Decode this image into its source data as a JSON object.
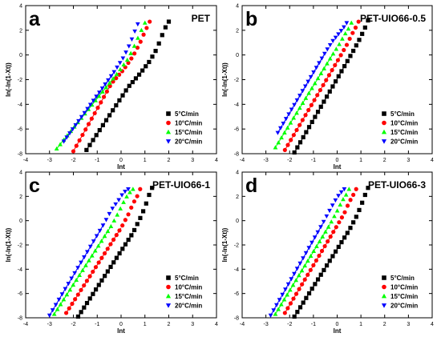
{
  "chart_data": [
    {
      "type": "scatter",
      "panel_letter": "a",
      "title": "PET",
      "xlabel": "lnt",
      "ylabel": "ln(-ln(1-Xt))",
      "xlim": [
        -4,
        4
      ],
      "ylim": [
        -8,
        4
      ],
      "xticks": [
        -4,
        -3,
        -2,
        -1,
        0,
        1,
        2,
        3,
        4
      ],
      "yticks": [
        -8,
        -6,
        -4,
        -2,
        0,
        2,
        4
      ],
      "grid": false,
      "legend_position": "bottom-right",
      "series": [
        {
          "name": "5°C/min",
          "marker": "square",
          "color": "#000000",
          "x_range": [
            -1.45,
            2.0
          ],
          "fit": [
            -1.45,
            -7.7,
            0.3,
            -2.6
          ],
          "tail": [
            [
              0.3,
              -2.6
            ],
            [
              0.8,
              -1.5
            ],
            [
              1.2,
              -0.5
            ],
            [
              1.5,
              0.5
            ],
            [
              1.7,
              1.5
            ],
            [
              1.85,
              2.2
            ],
            [
              2.0,
              2.7
            ]
          ]
        },
        {
          "name": "10°C/min",
          "marker": "circle",
          "color": "#ff0000",
          "x_range": [
            -2.0,
            1.2
          ],
          "fit": [
            -2.0,
            -7.8,
            -0.4,
            -2.3
          ],
          "tail": [
            [
              -0.4,
              -2.3
            ],
            [
              0.1,
              -1.2
            ],
            [
              0.5,
              -0.1
            ],
            [
              0.8,
              1.0
            ],
            [
              1.0,
              1.9
            ],
            [
              1.2,
              2.7
            ]
          ]
        },
        {
          "name": "15°C/min",
          "marker": "triangle-up",
          "color": "#00ff00",
          "x_range": [
            -2.7,
            1.0
          ],
          "fit": [
            -2.7,
            -7.6,
            -0.2,
            -1.6
          ],
          "tail": [
            [
              -0.2,
              -1.6
            ],
            [
              0.3,
              -0.3
            ],
            [
              0.6,
              0.9
            ],
            [
              0.8,
              1.8
            ],
            [
              1.0,
              2.6
            ]
          ]
        },
        {
          "name": "20°C/min",
          "marker": "triangle-down",
          "color": "#0000ff",
          "x_range": [
            -2.4,
            0.7
          ],
          "fit": [
            -2.4,
            -7.0,
            -0.3,
            -1.4
          ],
          "tail": [
            [
              -0.3,
              -1.4
            ],
            [
              0.1,
              -0.2
            ],
            [
              0.4,
              1.0
            ],
            [
              0.55,
              1.8
            ],
            [
              0.7,
              2.5
            ]
          ]
        }
      ]
    },
    {
      "type": "scatter",
      "panel_letter": "b",
      "title": "PET-UIO66-0.5",
      "xlabel": "lnt",
      "ylabel": "ln(-ln(1-Xt))",
      "xlim": [
        -4,
        4
      ],
      "ylim": [
        -8,
        4
      ],
      "xticks": [
        -4,
        -3,
        -2,
        -1,
        0,
        1,
        2,
        3,
        4
      ],
      "yticks": [
        -8,
        -6,
        -4,
        -2,
        0,
        2,
        4
      ],
      "grid": false,
      "legend_position": "bottom-right",
      "series": [
        {
          "name": "5°C/min",
          "marker": "square",
          "color": "#000000",
          "x_range": [
            -1.8,
            1.3
          ],
          "fit": [
            -1.8,
            -7.9,
            0.4,
            -0.6
          ],
          "tail": [
            [
              0.4,
              -0.6
            ],
            [
              0.7,
              0.4
            ],
            [
              0.95,
              1.3
            ],
            [
              1.15,
              2.1
            ],
            [
              1.3,
              2.8
            ]
          ]
        },
        {
          "name": "10°C/min",
          "marker": "circle",
          "color": "#ff0000",
          "x_range": [
            -2.2,
            0.9
          ],
          "fit": [
            -2.2,
            -7.7,
            0.1,
            -0.2
          ],
          "tail": [
            [
              0.1,
              -0.2
            ],
            [
              0.4,
              0.8
            ],
            [
              0.6,
              1.6
            ],
            [
              0.8,
              2.3
            ],
            [
              0.9,
              2.7
            ]
          ]
        },
        {
          "name": "15°C/min",
          "marker": "triangle-up",
          "color": "#00ff00",
          "x_range": [
            -2.6,
            0.6
          ],
          "fit": [
            -2.6,
            -7.5,
            -0.2,
            0.0
          ],
          "tail": [
            [
              -0.2,
              0.0
            ],
            [
              0.1,
              0.9
            ],
            [
              0.3,
              1.6
            ],
            [
              0.5,
              2.2
            ],
            [
              0.6,
              2.6
            ]
          ]
        },
        {
          "name": "20°C/min",
          "marker": "triangle-down",
          "color": "#0000ff",
          "x_range": [
            -2.5,
            0.4
          ],
          "fit": [
            -2.5,
            -6.3,
            -0.5,
            0.2
          ],
          "tail": [
            [
              -0.5,
              0.2
            ],
            [
              -0.2,
              1.1
            ],
            [
              0.1,
              1.8
            ],
            [
              0.3,
              2.3
            ],
            [
              0.4,
              2.6
            ]
          ]
        }
      ]
    },
    {
      "type": "scatter",
      "panel_letter": "c",
      "title": "PET-UIO66-1",
      "xlabel": "lnt",
      "ylabel": "ln(-ln(1-Xt))",
      "xlim": [
        -4,
        4
      ],
      "ylim": [
        -8,
        4
      ],
      "xticks": [
        -4,
        -3,
        -2,
        -1,
        0,
        1,
        2,
        3,
        4
      ],
      "yticks": [
        -8,
        -6,
        -4,
        -2,
        0,
        2,
        4
      ],
      "grid": false,
      "legend_position": "bottom-right",
      "series": [
        {
          "name": "5°C/min",
          "marker": "square",
          "color": "#000000",
          "x_range": [
            -1.8,
            1.3
          ],
          "fit": [
            -1.8,
            -7.9,
            0.5,
            -1.0
          ],
          "tail": [
            [
              0.5,
              -1.0
            ],
            [
              0.8,
              0.2
            ],
            [
              1.0,
              1.1
            ],
            [
              1.15,
              2.0
            ],
            [
              1.3,
              2.7
            ]
          ]
        },
        {
          "name": "10°C/min",
          "marker": "circle",
          "color": "#ff0000",
          "x_range": [
            -2.3,
            0.8
          ],
          "fit": [
            -2.3,
            -7.6,
            0.0,
            -0.6
          ],
          "tail": [
            [
              0.0,
              -0.6
            ],
            [
              0.3,
              0.5
            ],
            [
              0.5,
              1.4
            ],
            [
              0.7,
              2.1
            ],
            [
              0.8,
              2.6
            ]
          ]
        },
        {
          "name": "15°C/min",
          "marker": "triangle-up",
          "color": "#00ff00",
          "x_range": [
            -2.8,
            0.5
          ],
          "fit": [
            -2.8,
            -7.7,
            -0.4,
            -0.4
          ],
          "tail": [
            [
              -0.4,
              -0.4
            ],
            [
              -0.1,
              0.7
            ],
            [
              0.1,
              1.5
            ],
            [
              0.3,
              2.2
            ],
            [
              0.5,
              2.6
            ]
          ]
        },
        {
          "name": "20°C/min",
          "marker": "triangle-down",
          "color": "#0000ff",
          "x_range": [
            -3.0,
            0.3
          ],
          "fit": [
            -3.0,
            -7.8,
            -0.7,
            -0.2
          ],
          "tail": [
            [
              -0.7,
              -0.2
            ],
            [
              -0.4,
              0.9
            ],
            [
              -0.1,
              1.7
            ],
            [
              0.1,
              2.3
            ],
            [
              0.3,
              2.6
            ]
          ]
        }
      ]
    },
    {
      "type": "scatter",
      "panel_letter": "d",
      "title": "PET-UIO66-3",
      "xlabel": "lnt",
      "ylabel": "ln(-ln(1-Xt))",
      "xlim": [
        -4,
        4
      ],
      "ylim": [
        -8,
        4
      ],
      "xticks": [
        -4,
        -3,
        -2,
        -1,
        0,
        1,
        2,
        3,
        4
      ],
      "yticks": [
        -8,
        -6,
        -4,
        -2,
        0,
        2,
        4
      ],
      "grid": false,
      "legend_position": "bottom-right",
      "series": [
        {
          "name": "5°C/min",
          "marker": "square",
          "color": "#000000",
          "x_range": [
            -1.8,
            1.3
          ],
          "fit": [
            -1.8,
            -7.9,
            0.5,
            -0.8
          ],
          "tail": [
            [
              0.5,
              -0.8
            ],
            [
              0.8,
              0.3
            ],
            [
              1.0,
              1.2
            ],
            [
              1.15,
              2.0
            ],
            [
              1.3,
              2.7
            ]
          ]
        },
        {
          "name": "10°C/min",
          "marker": "circle",
          "color": "#ff0000",
          "x_range": [
            -2.2,
            0.8
          ],
          "fit": [
            -2.2,
            -7.6,
            0.0,
            -0.4
          ],
          "tail": [
            [
              0.0,
              -0.4
            ],
            [
              0.3,
              0.6
            ],
            [
              0.5,
              1.5
            ],
            [
              0.7,
              2.2
            ],
            [
              0.8,
              2.6
            ]
          ]
        },
        {
          "name": "15°C/min",
          "marker": "triangle-up",
          "color": "#00ff00",
          "x_range": [
            -2.6,
            0.5
          ],
          "fit": [
            -2.6,
            -7.7,
            -0.3,
            -0.3
          ],
          "tail": [
            [
              -0.3,
              -0.3
            ],
            [
              0.0,
              0.8
            ],
            [
              0.2,
              1.6
            ],
            [
              0.4,
              2.2
            ],
            [
              0.5,
              2.6
            ]
          ]
        },
        {
          "name": "20°C/min",
          "marker": "triangle-down",
          "color": "#0000ff",
          "x_range": [
            -2.8,
            0.3
          ],
          "fit": [
            -2.8,
            -7.8,
            -0.6,
            -0.2
          ],
          "tail": [
            [
              -0.6,
              -0.2
            ],
            [
              -0.3,
              0.9
            ],
            [
              -0.1,
              1.6
            ],
            [
              0.1,
              2.2
            ],
            [
              0.3,
              2.6
            ]
          ]
        }
      ]
    }
  ]
}
